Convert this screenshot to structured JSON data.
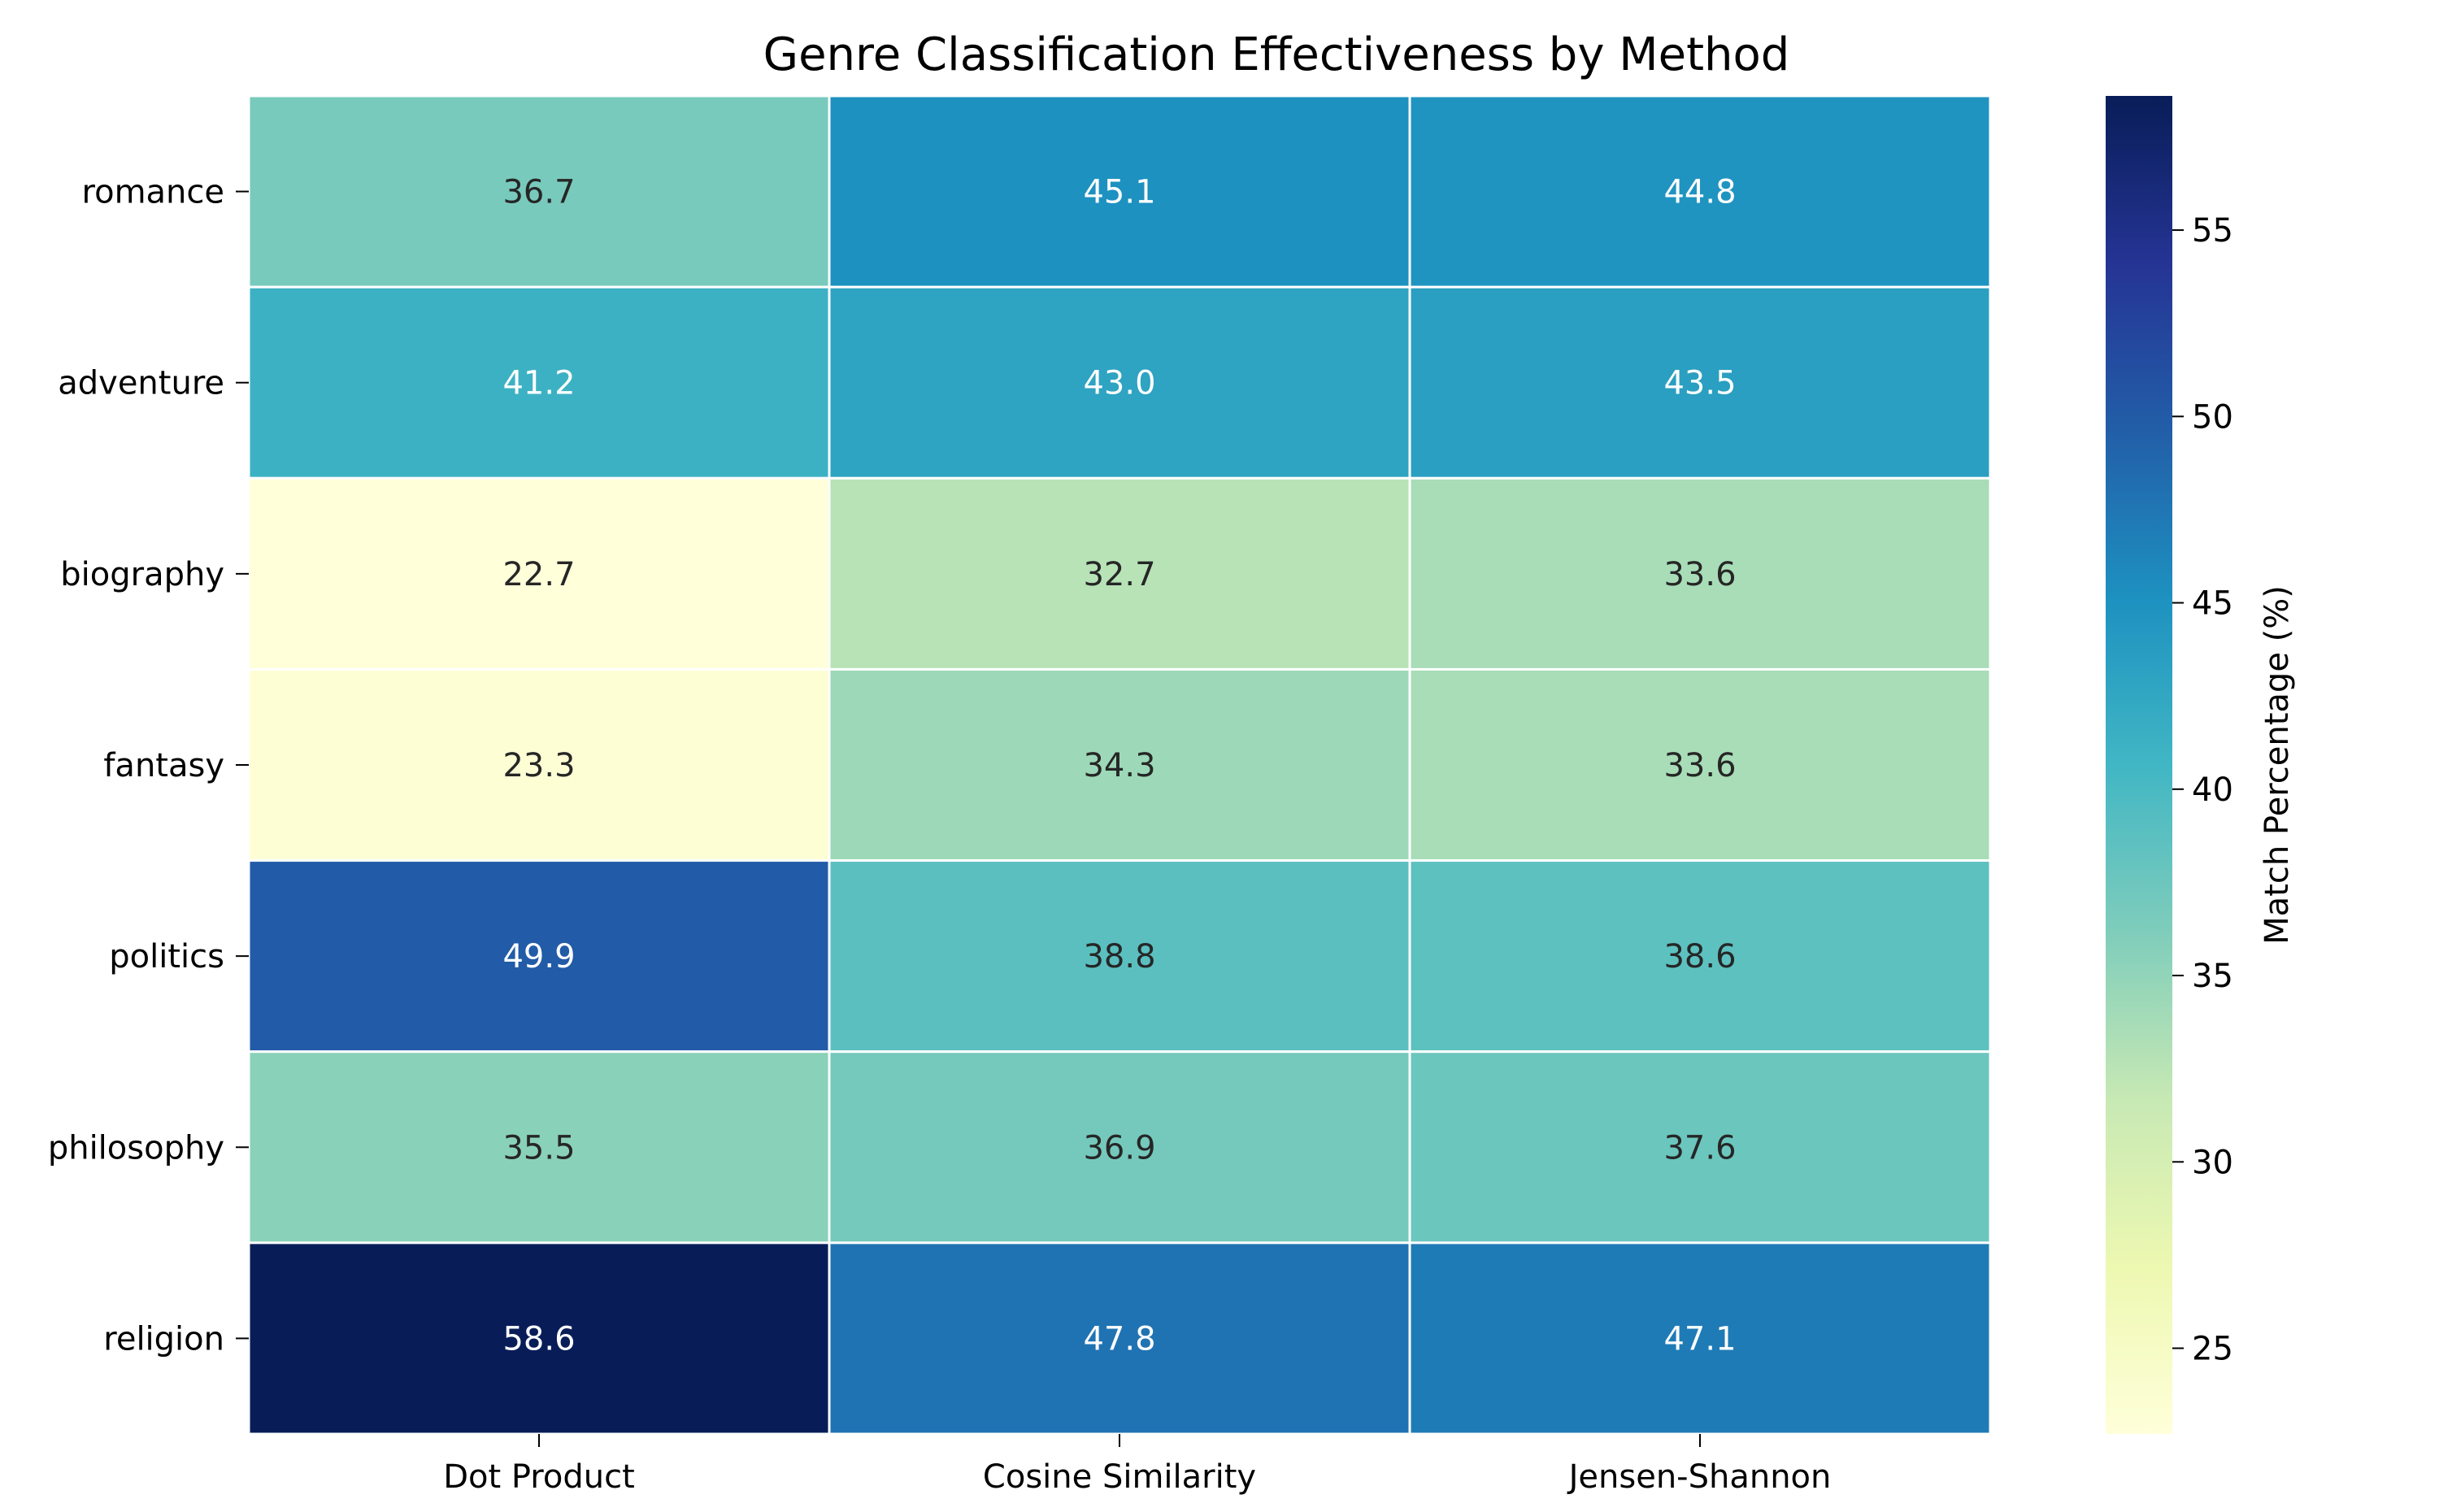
{
  "chart_data": {
    "type": "heatmap",
    "title": "Genre Classification Effectiveness by Method",
    "rows": [
      "romance",
      "adventure",
      "biography",
      "fantasy",
      "politics",
      "philosophy",
      "religion"
    ],
    "columns": [
      "Dot Product",
      "Cosine Similarity",
      "Jensen-Shannon"
    ],
    "values": [
      [
        36.7,
        45.1,
        44.8
      ],
      [
        41.2,
        43.0,
        43.5
      ],
      [
        22.7,
        32.7,
        33.6
      ],
      [
        23.3,
        34.3,
        33.6
      ],
      [
        49.9,
        38.8,
        38.6
      ],
      [
        35.5,
        36.9,
        37.6
      ],
      [
        58.6,
        47.8,
        47.1
      ]
    ],
    "colorbar": {
      "label": "Match Percentage (%)",
      "range": [
        22.7,
        58.6
      ],
      "ticks": [
        "25",
        "30",
        "35",
        "40",
        "45",
        "50",
        "55"
      ],
      "colormap": "YlGnBu",
      "colormap_stops": [
        "#ffffd9",
        "#edf8b1",
        "#c7e9b4",
        "#7fcdbb",
        "#41b6c4",
        "#1d91c0",
        "#225ea8",
        "#253494",
        "#081d58"
      ]
    },
    "grid_line_color": "#ffffff",
    "annotation_colors": {
      "dark": "#262626",
      "light": "#ffffff"
    }
  }
}
